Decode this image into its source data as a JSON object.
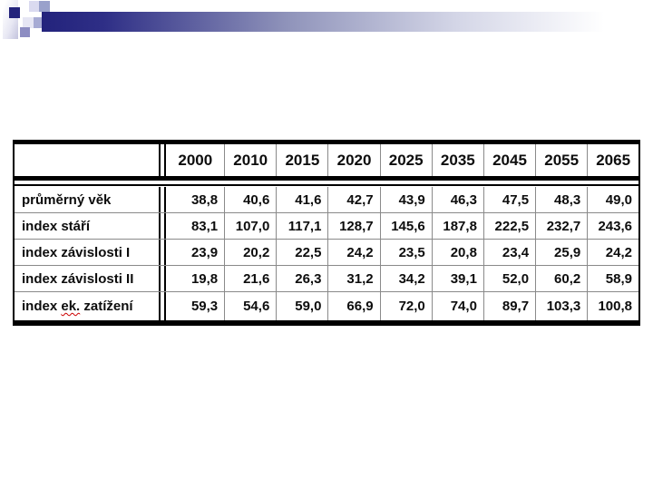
{
  "colors": {
    "accent_navy": "#23237c",
    "grid_gray": "#8a8a8a",
    "border_black": "#000000",
    "squiggle_red": "#cc0000"
  },
  "table": {
    "corner_label": "",
    "columns": [
      "2000",
      "2010",
      "2015",
      "2020",
      "2025",
      "2035",
      "2045",
      "2055",
      "2065"
    ],
    "rows": [
      {
        "label": "průměrný věk",
        "values": [
          "38,8",
          "40,6",
          "41,6",
          "42,7",
          "43,9",
          "46,3",
          "47,5",
          "48,3",
          "49,0"
        ]
      },
      {
        "label": "index stáří",
        "values": [
          "83,1",
          "107,0",
          "117,1",
          "128,7",
          "145,6",
          "187,8",
          "222,5",
          "232,7",
          "243,6"
        ]
      },
      {
        "label": "index závislosti I",
        "values": [
          "23,9",
          "20,2",
          "22,5",
          "24,2",
          "23,5",
          "20,8",
          "23,4",
          "25,9",
          "24,2"
        ]
      },
      {
        "label": "index závislosti II",
        "values": [
          "19,8",
          "21,6",
          "26,3",
          "31,2",
          "34,2",
          "39,1",
          "52,0",
          "60,2",
          "58,9"
        ]
      },
      {
        "label": "index ek. zatížení",
        "spellcheck_word": "ek.",
        "values": [
          "59,3",
          "54,6",
          "59,0",
          "66,9",
          "72,0",
          "74,0",
          "89,7",
          "103,3",
          "100,8"
        ]
      }
    ]
  }
}
